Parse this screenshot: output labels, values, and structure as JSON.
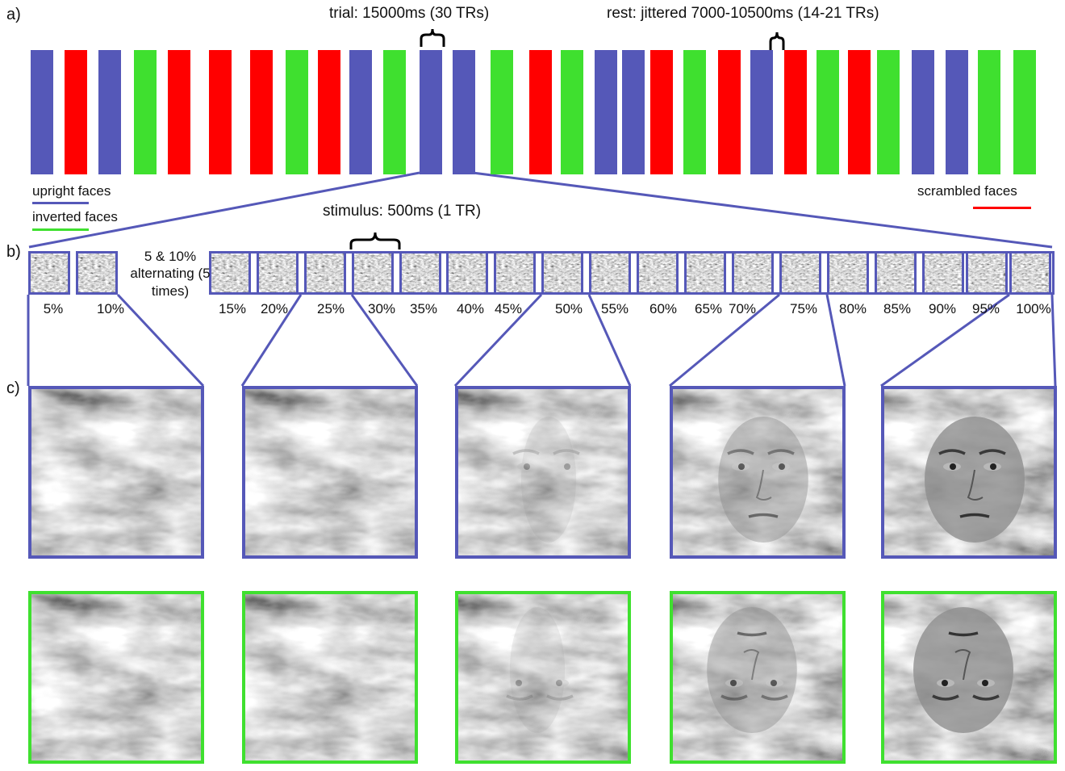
{
  "panel_labels": {
    "a": "a)",
    "b": "b)",
    "c": "c)"
  },
  "annotations": {
    "trial": "trial: 15000ms (30 TRs)",
    "rest": "rest: jittered 7000-10500ms (14-21 TRs)",
    "stimulus": "stimulus: 500ms (1 TR)",
    "alternating": "5 & 10% alternating (5 times)"
  },
  "legend": {
    "upright": {
      "label": "upright faces",
      "color": "#5558b8"
    },
    "inverted": {
      "label": "inverted faces",
      "color": "#3fe02f"
    },
    "scrambled": {
      "label": "scrambled faces",
      "color": "#ff0000"
    }
  },
  "colors": {
    "upright": "#5558b8",
    "inverted": "#3fe02f",
    "scrambled": "#ff0000",
    "zoom_line": "#5558b8"
  },
  "trial_sequence": [
    "upright",
    "scrambled",
    "upright",
    "inverted",
    "scrambled",
    "scrambled",
    "scrambled",
    "inverted",
    "scrambled",
    "upright",
    "inverted",
    "upright",
    "upright",
    "inverted",
    "scrambled",
    "inverted",
    "upright",
    "upright",
    "scrambled",
    "inverted",
    "scrambled",
    "upright",
    "scrambled",
    "inverted",
    "scrambled",
    "inverted",
    "upright",
    "upright",
    "inverted",
    "inverted"
  ],
  "stimulus_percentages": [
    "5%",
    "10%",
    "15%",
    "20%",
    "25%",
    "30%",
    "35%",
    "40%",
    "45%",
    "50%",
    "55%",
    "60%",
    "65%",
    "70%",
    "75%",
    "80%",
    "85%",
    "90%",
    "95%",
    "100%"
  ],
  "face_visibility_levels": {
    "upright_row": [
      0,
      0,
      0.35,
      0.7,
      1.0
    ],
    "inverted_row": [
      0,
      0,
      0.35,
      0.7,
      1.0
    ]
  },
  "icons": {
    "brace": "curly-brace-icon",
    "noise": "noise-image-icon",
    "face": "face-image-icon"
  }
}
